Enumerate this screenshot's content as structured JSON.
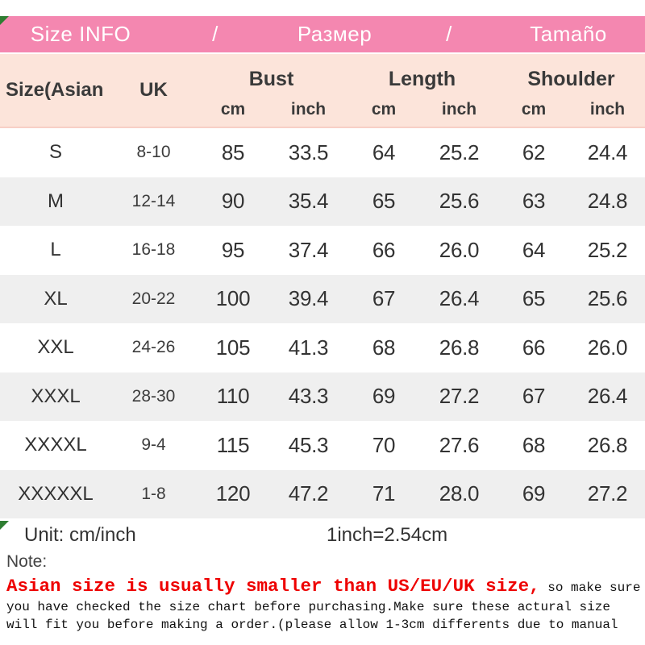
{
  "title_bar": {
    "left": "Size INFO",
    "sep1": "/",
    "middle": "Размер",
    "sep2": "/",
    "right": "Tamaño"
  },
  "table": {
    "col1_header": "Size(Asian",
    "col2_header": "UK",
    "groups": [
      {
        "label": "Bust"
      },
      {
        "label": "Length"
      },
      {
        "label": "Shoulder"
      }
    ],
    "unit_cm": "cm",
    "unit_inch": "inch",
    "rows": [
      {
        "size": "S",
        "uk": "8-10",
        "bust_cm": "85",
        "bust_inch": "33.5",
        "length_cm": "64",
        "length_inch": "25.2",
        "shoulder_cm": "62",
        "shoulder_inch": "24.4"
      },
      {
        "size": "M",
        "uk": "12-14",
        "bust_cm": "90",
        "bust_inch": "35.4",
        "length_cm": "65",
        "length_inch": "25.6",
        "shoulder_cm": "63",
        "shoulder_inch": "24.8"
      },
      {
        "size": "L",
        "uk": "16-18",
        "bust_cm": "95",
        "bust_inch": "37.4",
        "length_cm": "66",
        "length_inch": "26.0",
        "shoulder_cm": "64",
        "shoulder_inch": "25.2"
      },
      {
        "size": "XL",
        "uk": "20-22",
        "bust_cm": "100",
        "bust_inch": "39.4",
        "length_cm": "67",
        "length_inch": "26.4",
        "shoulder_cm": "65",
        "shoulder_inch": "25.6"
      },
      {
        "size": "XXL",
        "uk": "24-26",
        "bust_cm": "105",
        "bust_inch": "41.3",
        "length_cm": "68",
        "length_inch": "26.8",
        "shoulder_cm": "66",
        "shoulder_inch": "26.0"
      },
      {
        "size": "XXXL",
        "uk": "28-30",
        "bust_cm": "110",
        "bust_inch": "43.3",
        "length_cm": "69",
        "length_inch": "27.2",
        "shoulder_cm": "67",
        "shoulder_inch": "26.4"
      },
      {
        "size": "XXXXL",
        "uk": "9-4",
        "bust_cm": "115",
        "bust_inch": "45.3",
        "length_cm": "70",
        "length_inch": "27.6",
        "shoulder_cm": "68",
        "shoulder_inch": "26.8"
      },
      {
        "size": "XXXXXL",
        "uk": "1-8",
        "bust_cm": "120",
        "bust_inch": "47.2",
        "length_cm": "71",
        "length_inch": "28.0",
        "shoulder_cm": "69",
        "shoulder_inch": "27.2"
      }
    ]
  },
  "footer": {
    "unit_label": "Unit: cm/inch",
    "conversion": "1inch=2.54cm",
    "note_label": "Note:",
    "note_red": "Asian size is usually smaller than US/EU/UK size,",
    "note_line1_black": " so make sure",
    "note_line2": "you have checked the size chart before purchasing.Make sure these actural size",
    "note_line3": "will fit you before making a order.(please allow 1-3cm differents due to manual"
  },
  "colors": {
    "title_bar_pink": "#f487b0",
    "header_peach": "#fce4da",
    "row_stripe_gray": "#efefef",
    "note_red": "#ee0000",
    "text_dark": "#333333",
    "corner_marker_green": "#2e7d32"
  }
}
